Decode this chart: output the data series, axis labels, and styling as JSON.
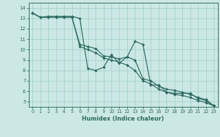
{
  "xlabel": "Humidex (Indice chaleur)",
  "bg_color": "#cce8e4",
  "grid_color": "#99cccc",
  "line_color": "#2d6b60",
  "xlim": [
    -0.5,
    23.5
  ],
  "ylim": [
    4.5,
    14.5
  ],
  "xticks": [
    0,
    1,
    2,
    3,
    4,
    5,
    6,
    7,
    8,
    9,
    10,
    11,
    12,
    13,
    14,
    15,
    16,
    17,
    18,
    19,
    20,
    21,
    22,
    23
  ],
  "yticks": [
    5,
    6,
    7,
    8,
    9,
    10,
    11,
    12,
    13,
    14
  ],
  "line1_x": [
    0,
    1,
    2,
    3,
    4,
    5,
    6,
    7,
    8,
    9,
    10,
    11,
    12,
    13,
    14,
    15,
    16,
    17,
    18,
    19,
    20,
    21,
    22,
    23
  ],
  "line1_y": [
    13.5,
    13.1,
    13.2,
    13.2,
    13.2,
    13.2,
    13.0,
    8.2,
    8.0,
    8.3,
    9.5,
    8.7,
    9.3,
    10.8,
    10.5,
    6.6,
    6.6,
    5.9,
    5.8,
    5.8,
    5.8,
    5.3,
    5.1,
    4.6
  ],
  "line2_x": [
    0,
    1,
    2,
    3,
    4,
    5,
    6,
    7,
    8,
    9,
    10,
    11,
    12,
    13,
    14,
    15,
    16,
    17,
    18,
    19,
    20,
    21,
    22,
    23
  ],
  "line2_y": [
    13.5,
    13.1,
    13.1,
    13.1,
    13.1,
    13.1,
    10.5,
    10.3,
    10.1,
    9.4,
    9.3,
    9.1,
    9.3,
    9.0,
    7.2,
    7.0,
    6.5,
    6.2,
    6.1,
    5.9,
    5.7,
    5.4,
    5.2,
    4.6
  ],
  "line3_x": [
    0,
    1,
    2,
    3,
    4,
    5,
    6,
    7,
    8,
    9,
    10,
    11,
    12,
    13,
    14,
    15,
    16,
    17,
    18,
    19,
    20,
    21,
    22,
    23
  ],
  "line3_y": [
    13.5,
    13.1,
    13.1,
    13.1,
    13.1,
    13.1,
    10.3,
    10.0,
    9.7,
    9.2,
    9.0,
    8.8,
    8.5,
    8.0,
    7.0,
    6.7,
    6.2,
    5.9,
    5.7,
    5.6,
    5.4,
    5.1,
    4.9,
    4.6
  ]
}
